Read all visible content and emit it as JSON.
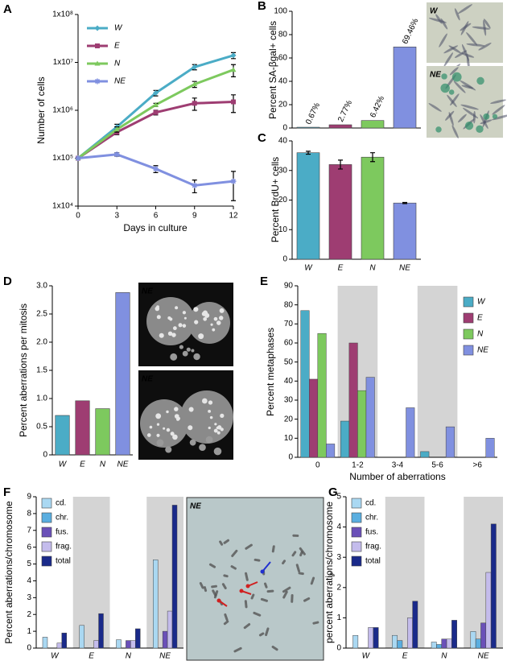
{
  "panels": [
    "A",
    "B",
    "C",
    "D",
    "E",
    "F",
    "G"
  ],
  "images": [
    {
      "label": "W"
    },
    {
      "label": "NE"
    },
    {
      "label": "NE"
    },
    {
      "label": "NE"
    },
    {
      "label": "NE"
    }
  ],
  "chart_data": [
    {
      "type": "line",
      "ylabel": "Number of cells",
      "xlabel": "Days in culture",
      "ylog": true,
      "x": [
        0,
        3,
        6,
        9,
        12
      ],
      "xlim": [
        0,
        12
      ],
      "xticks": [
        0,
        3,
        6,
        9,
        12
      ],
      "ylim": [
        10000,
        100000000
      ],
      "yticks": [
        {
          "value": 10000,
          "label": "1x10⁴"
        },
        {
          "value": 100000,
          "label": "1x10⁵"
        },
        {
          "value": 1000000,
          "label": "1x10⁶"
        },
        {
          "value": 10000000,
          "label": "1x10⁷"
        },
        {
          "value": 100000000,
          "label": "1x10⁸"
        }
      ],
      "series": [
        {
          "name": "W",
          "color": "#4bacc6",
          "marker": "diamond",
          "values": [
            100000,
            450000,
            2300000,
            8000000,
            14000000
          ],
          "errors": [
            0,
            60000,
            300000,
            1000000,
            2000000
          ]
        },
        {
          "name": "E",
          "color": "#9e3d72",
          "marker": "square",
          "values": [
            100000,
            350000,
            900000,
            1400000,
            1500000
          ],
          "errors": [
            0,
            40000,
            100000,
            400000,
            600000
          ]
        },
        {
          "name": "N",
          "color": "#7dc95e",
          "marker": "triangle",
          "values": [
            100000,
            400000,
            1300000,
            3500000,
            7000000
          ],
          "errors": [
            0,
            50000,
            100000,
            500000,
            2000000
          ]
        },
        {
          "name": "NE",
          "color": "#8090e0",
          "marker": "star",
          "values": [
            100000,
            120000,
            60000,
            27000,
            33000
          ],
          "errors": [
            0,
            10000,
            10000,
            8000,
            20000
          ]
        }
      ]
    },
    {
      "type": "bar",
      "ylabel": "Percent SA-βgal+ cells",
      "categories": [
        null,
        null,
        null,
        null
      ],
      "values": [
        0.67,
        2.77,
        6.42,
        69.46
      ],
      "value_labels": [
        "0.67%",
        "2.77%",
        "6.42%",
        "69.46%"
      ],
      "colors": [
        "#4bacc6",
        "#9e3d72",
        "#7dc95e",
        "#8090e0"
      ],
      "ylim": [
        0,
        100
      ],
      "yticks": [
        0,
        20,
        40,
        60,
        80,
        100
      ]
    },
    {
      "type": "bar",
      "ylabel": "Percent BrdU+ cells",
      "categories": [
        "W",
        "E",
        "N",
        "NE"
      ],
      "values": [
        36,
        32,
        34.5,
        19
      ],
      "errors": [
        0.5,
        1.5,
        1.5,
        0.2
      ],
      "colors": [
        "#4bacc6",
        "#9e3d72",
        "#7dc95e",
        "#8090e0"
      ],
      "ylim": [
        0,
        40
      ],
      "yticks": [
        0,
        10,
        20,
        30,
        40
      ]
    },
    {
      "type": "bar",
      "ylabel": "Percent aberrations per mitosis",
      "categories": [
        "W",
        "E",
        "N",
        "NE"
      ],
      "values": [
        0.7,
        0.96,
        0.82,
        2.88
      ],
      "colors": [
        "#4bacc6",
        "#9e3d72",
        "#7dc95e",
        "#8090e0"
      ],
      "ylim": [
        0,
        3
      ],
      "yticks": [
        0,
        0.5,
        {
          "value": 1,
          "label": "1.0"
        },
        1.5,
        {
          "value": 2,
          "label": "2.0"
        },
        2.5,
        {
          "value": 3,
          "label": "3.0"
        }
      ]
    },
    {
      "type": "grouped_bar",
      "ylabel": "Percent metaphases",
      "xlabel": "Number of aberrations",
      "categories": [
        "0",
        "1-2",
        "3-4",
        "5-6",
        ">6"
      ],
      "series": [
        {
          "name": "W",
          "color": "#4bacc6",
          "values": [
            77,
            19,
            0,
            3,
            0
          ]
        },
        {
          "name": "E",
          "color": "#9e3d72",
          "values": [
            41,
            60,
            0,
            0,
            0
          ]
        },
        {
          "name": "N",
          "color": "#7dc95e",
          "values": [
            65,
            35,
            0,
            0,
            0
          ]
        },
        {
          "name": "NE",
          "color": "#8090e0",
          "values": [
            7,
            42,
            26,
            16,
            10
          ]
        }
      ],
      "ylim": [
        0,
        90
      ],
      "yticks": [
        0,
        10,
        20,
        30,
        40,
        50,
        60,
        70,
        80,
        90
      ]
    },
    {
      "type": "grouped_bar",
      "ylabel": "Percent aberrations/chromosome",
      "categories": [
        "W",
        "E",
        "N",
        "NE"
      ],
      "series": [
        {
          "name": "cd.",
          "color": "#aad8f2",
          "values": [
            0.65,
            1.35,
            0.5,
            5.25
          ]
        },
        {
          "name": "chr.",
          "color": "#5aaee0",
          "values": [
            0,
            0,
            0,
            0
          ]
        },
        {
          "name": "fus.",
          "color": "#6a50b8",
          "values": [
            0,
            0,
            0.45,
            1.0
          ]
        },
        {
          "name": "frag.",
          "color": "#c4bcec",
          "values": [
            0.3,
            0.45,
            0.45,
            2.2
          ]
        },
        {
          "name": "total",
          "color": "#1a2a8a",
          "values": [
            0.9,
            2.05,
            1.15,
            8.5
          ]
        }
      ],
      "ylim": [
        0,
        9
      ],
      "yticks": [
        0,
        1,
        2,
        3,
        4,
        5,
        6,
        7,
        8,
        9
      ]
    },
    {
      "type": "grouped_bar",
      "ylabel": "percent aberrations/chromosome",
      "categories": [
        "W",
        "E",
        "N",
        "NE"
      ],
      "series": [
        {
          "name": "cd.",
          "color": "#aad8f2",
          "values": [
            0.42,
            0.42,
            0.2,
            0.55
          ]
        },
        {
          "name": "chr.",
          "color": "#5aaee0",
          "values": [
            0,
            0.25,
            0.12,
            0.3
          ]
        },
        {
          "name": "fus.",
          "color": "#6a50b8",
          "values": [
            0,
            0,
            0.3,
            0.83
          ]
        },
        {
          "name": "frag.",
          "color": "#c4bcec",
          "values": [
            0.68,
            1.0,
            0.3,
            2.5
          ]
        },
        {
          "name": "total",
          "color": "#1a2a8a",
          "values": [
            0.68,
            1.55,
            0.92,
            4.1
          ]
        }
      ],
      "ylim": [
        0,
        5
      ],
      "yticks": [
        0,
        1,
        2,
        3,
        4,
        5
      ]
    }
  ]
}
